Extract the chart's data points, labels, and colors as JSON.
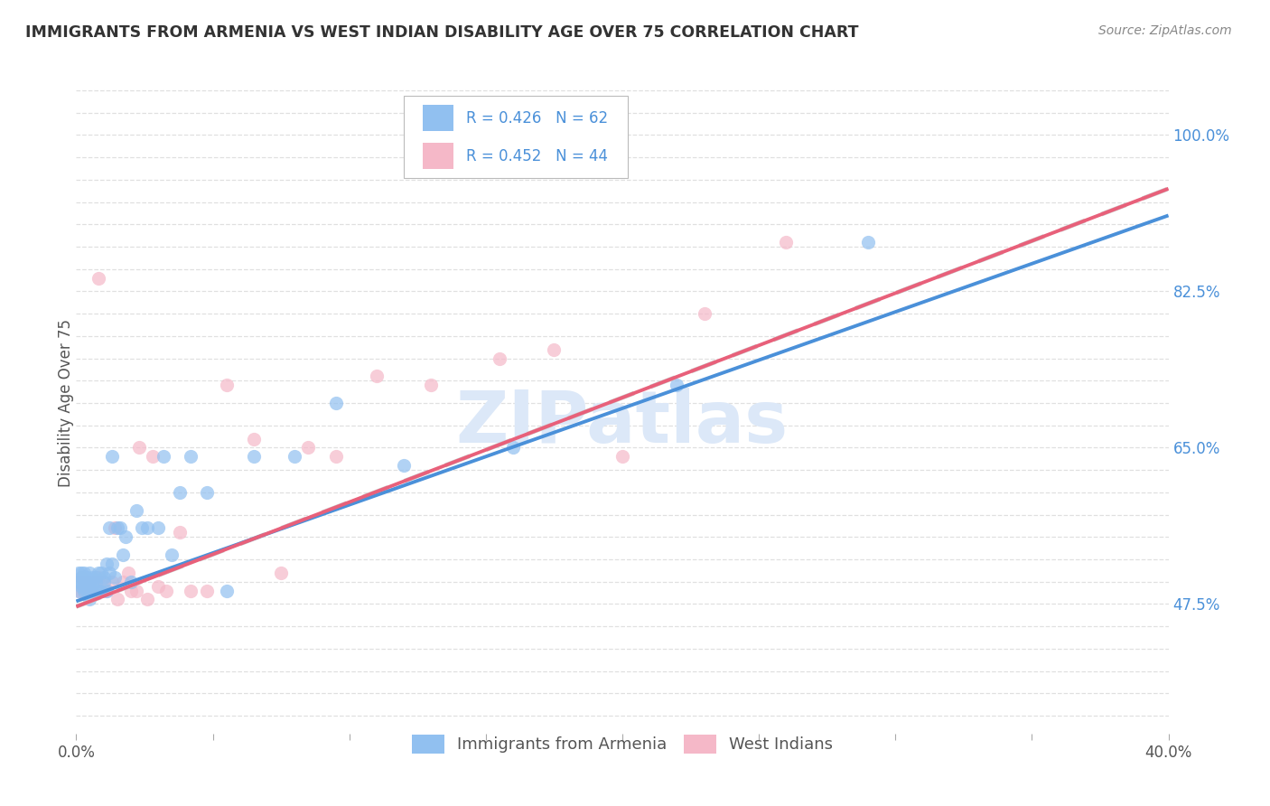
{
  "title": "IMMIGRANTS FROM ARMENIA VS WEST INDIAN DISABILITY AGE OVER 75 CORRELATION CHART",
  "source": "Source: ZipAtlas.com",
  "ylabel": "Disability Age Over 75",
  "R1": "0.426",
  "N1": "62",
  "R2": "0.452",
  "N2": "44",
  "legend_label1": "Immigrants from Armenia",
  "legend_label2": "West Indians",
  "color_blue": "#91c0f0",
  "color_pink": "#f5b8c8",
  "color_line_blue": "#4a90d9",
  "color_line_pink": "#e8607a",
  "color_line_shadow": "#cccccc",
  "color_title": "#333333",
  "color_axis_label": "#555555",
  "color_right_tick": "#4a90d9",
  "color_watermark": "#dce8f8",
  "background_color": "#ffffff",
  "grid_color": "#dddddd",
  "scatter_alpha": 0.7,
  "scatter_size": 120,
  "xlim": [
    0.0,
    0.4
  ],
  "ylim": [
    0.33,
    1.07
  ],
  "line1_x0": 0.0,
  "line1_y0": 0.478,
  "line1_x1": 0.4,
  "line1_y1": 0.91,
  "line2_x0": 0.0,
  "line2_y0": 0.472,
  "line2_x1": 0.4,
  "line2_y1": 0.94,
  "armenia_x": [
    0.001,
    0.001,
    0.001,
    0.002,
    0.002,
    0.002,
    0.002,
    0.003,
    0.003,
    0.003,
    0.003,
    0.003,
    0.004,
    0.004,
    0.004,
    0.004,
    0.005,
    0.005,
    0.005,
    0.005,
    0.005,
    0.006,
    0.006,
    0.006,
    0.007,
    0.007,
    0.007,
    0.008,
    0.008,
    0.009,
    0.009,
    0.01,
    0.01,
    0.011,
    0.011,
    0.012,
    0.012,
    0.013,
    0.013,
    0.014,
    0.015,
    0.016,
    0.017,
    0.018,
    0.02,
    0.022,
    0.024,
    0.026,
    0.03,
    0.032,
    0.035,
    0.038,
    0.042,
    0.048,
    0.055,
    0.065,
    0.08,
    0.095,
    0.12,
    0.16,
    0.22,
    0.29
  ],
  "armenia_y": [
    0.49,
    0.5,
    0.51,
    0.5,
    0.495,
    0.505,
    0.51,
    0.49,
    0.495,
    0.5,
    0.505,
    0.51,
    0.49,
    0.495,
    0.5,
    0.505,
    0.48,
    0.485,
    0.495,
    0.5,
    0.51,
    0.49,
    0.5,
    0.505,
    0.49,
    0.5,
    0.505,
    0.49,
    0.51,
    0.49,
    0.51,
    0.5,
    0.505,
    0.49,
    0.52,
    0.51,
    0.56,
    0.52,
    0.64,
    0.505,
    0.56,
    0.56,
    0.53,
    0.55,
    0.5,
    0.58,
    0.56,
    0.56,
    0.56,
    0.64,
    0.53,
    0.6,
    0.64,
    0.6,
    0.49,
    0.64,
    0.64,
    0.7,
    0.63,
    0.65,
    0.72,
    0.88
  ],
  "westindian_x": [
    0.001,
    0.001,
    0.002,
    0.002,
    0.003,
    0.003,
    0.004,
    0.004,
    0.005,
    0.005,
    0.006,
    0.007,
    0.008,
    0.009,
    0.01,
    0.011,
    0.013,
    0.015,
    0.017,
    0.019,
    0.022,
    0.026,
    0.028,
    0.03,
    0.033,
    0.038,
    0.042,
    0.048,
    0.055,
    0.065,
    0.075,
    0.085,
    0.095,
    0.11,
    0.13,
    0.155,
    0.175,
    0.2,
    0.23,
    0.26,
    0.02,
    0.023,
    0.008,
    0.014
  ],
  "westindian_y": [
    0.49,
    0.5,
    0.49,
    0.505,
    0.49,
    0.5,
    0.49,
    0.5,
    0.49,
    0.5,
    0.49,
    0.5,
    0.505,
    0.49,
    0.5,
    0.49,
    0.5,
    0.48,
    0.5,
    0.51,
    0.49,
    0.48,
    0.64,
    0.495,
    0.49,
    0.555,
    0.49,
    0.49,
    0.72,
    0.66,
    0.51,
    0.65,
    0.64,
    0.73,
    0.72,
    0.75,
    0.76,
    0.64,
    0.8,
    0.88,
    0.49,
    0.65,
    0.84,
    0.56
  ]
}
